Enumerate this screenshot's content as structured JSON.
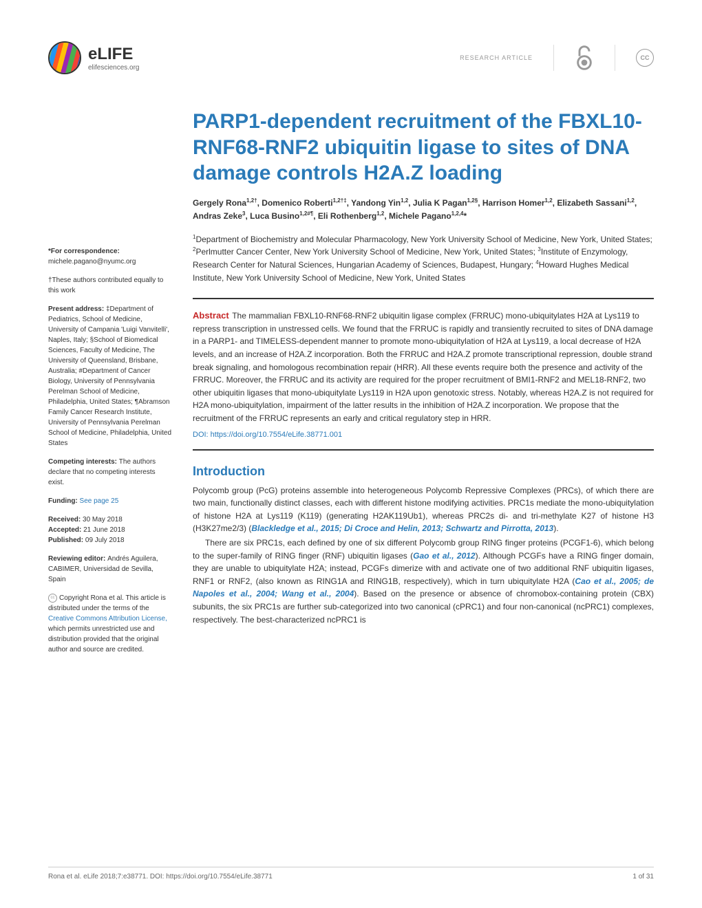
{
  "header": {
    "brand": "eLIFE",
    "url": "elifesciences.org",
    "research_label": "RESEARCH ARTICLE",
    "cc_label": "CC"
  },
  "title": "PARP1-dependent recruitment of the FBXL10-RNF68-RNF2 ubiquitin ligase to sites of DNA damage controls H2A.Z loading",
  "authors_html": "Gergely Rona<sup>1,2†</sup>, Domenico Roberti<sup>1,2†‡</sup>, Yandong Yin<sup>1,2</sup>, Julia K Pagan<sup>1,2§</sup>, Harrison Homer<sup>1,2</sup>, Elizabeth Sassani<sup>1,2</sup>, Andras Zeke<sup>3</sup>, Luca Busino<sup>1,2#¶</sup>, Eli Rothenberg<sup>1,2</sup>, Michele Pagano<sup>1,2,4</sup>*",
  "affiliations_html": "<sup>1</sup>Department of Biochemistry and Molecular Pharmacology, New York University School of Medicine, New York, United States; <sup>2</sup>Perlmutter Cancer Center, New York University School of Medicine, New York, United States; <sup>3</sup>Institute of Enzymology, Research Center for Natural Sciences, Hungarian Academy of Sciences, Budapest, Hungary; <sup>4</sup>Howard Hughes Medical Institute, New York University School of Medicine, New York, United States",
  "sidebar": {
    "correspondence_label": "*For correspondence:",
    "correspondence_email": "michele.pagano@nyumc.org",
    "equal_contrib": "†These authors contributed equally to this work",
    "present_addr_label": "Present address: ",
    "present_addr": "‡Department of Pediatrics, School of Medicine, University of Campania 'Luigi Vanvitelli', Naples, Italy; §School of Biomedical Sciences, Faculty of Medicine, The University of Queensland, Brisbane, Australia; #Department of Cancer Biology, University of Pennsylvania Perelman School of Medicine, Philadelphia, United States; ¶Abramson Family Cancer Research Institute, University of Pennsylvania Perelman School of Medicine, Philadelphia, United States",
    "competing_label": "Competing interests: ",
    "competing_text": "The authors declare that no competing interests exist.",
    "funding_label": "Funding: ",
    "funding_link": "See page 25",
    "received_label": "Received: ",
    "received_date": "30 May 2018",
    "accepted_label": "Accepted: ",
    "accepted_date": "21 June 2018",
    "published_label": "Published: ",
    "published_date": "09 July 2018",
    "reviewing_label": "Reviewing editor: ",
    "reviewing_text": "Andrés Aguilera, CABIMER, Universidad de Sevilla, Spain",
    "copyright_text": "Copyright Rona et al. This article is distributed under the terms of the ",
    "cc_link": "Creative Commons Attribution License,",
    "copyright_rest": " which permits unrestricted use and distribution provided that the original author and source are credited."
  },
  "abstract_label": "Abstract",
  "abstract": "The mammalian FBXL10-RNF68-RNF2 ubiquitin ligase complex (FRRUC) mono-ubiquitylates H2A at Lys119 to repress transcription in unstressed cells. We found that the FRRUC is rapidly and transiently recruited to sites of DNA damage in a PARP1- and TIMELESS-dependent manner to promote mono-ubiquitylation of H2A at Lys119, a local decrease of H2A levels, and an increase of H2A.Z incorporation. Both the FRRUC and H2A.Z promote transcriptional repression, double strand break signaling, and homologous recombination repair (HRR). All these events require both the presence and activity of the FRRUC. Moreover, the FRRUC and its activity are required for the proper recruitment of BMI1-RNF2 and MEL18-RNF2, two other ubiquitin ligases that mono-ubiquitylate Lys119 in H2A upon genotoxic stress. Notably, whereas H2A.Z is not required for H2A mono-ubiquitylation, impairment of the latter results in the inhibition of H2A.Z incorporation. We propose that the recruitment of the FRRUC represents an early and critical regulatory step in HRR.",
  "doi": "DOI: https://doi.org/10.7554/eLife.38771.001",
  "intro_heading": "Introduction",
  "intro_p1": "Polycomb group (PcG) proteins assemble into heterogeneous Polycomb Repressive Complexes (PRCs), of which there are two main, functionally distinct classes, each with different histone modifying activities. PRC1s mediate the mono-ubiquitylation of histone H2A at Lys119 (K119) (generating H2AK119Ub1), whereas PRC2s di- and tri-methylate K27 of histone H3 (H3K27me2/3) (",
  "intro_refs1": "Blackledge et al., 2015; Di Croce and Helin, 2013; Schwartz and Pirrotta, 2013",
  "intro_p1_end": ").",
  "intro_p2_start": "There are six PRC1s, each defined by one of six different Polycomb group RING finger proteins (PCGF1-6), which belong to the super-family of RING finger (RNF) ubiquitin ligases (",
  "intro_ref2": "Gao et al., 2012",
  "intro_p2_mid": "). Although PCGFs have a RING finger domain, they are unable to ubiquitylate H2A; instead, PCGFs dimerize with and activate one of two additional RNF ubiquitin ligases, RNF1 or RNF2, (also known as RING1A and RING1B, respectively), which in turn ubiquitylate H2A (",
  "intro_ref3": "Cao et al., 2005; de Napoles et al., 2004; Wang et al., 2004",
  "intro_p2_end": "). Based on the presence or absence of chromobox-containing protein (CBX) subunits, the six PRC1s are further sub-categorized into two canonical (cPRC1) and four non-canonical (ncPRC1) complexes, respectively. The best-characterized ncPRC1 is",
  "footer": {
    "citation": "Rona et al. eLife 2018;7:e38771. DOI: https://doi.org/10.7554/eLife.38771",
    "page": "1 of 31"
  },
  "colors": {
    "primary_blue": "#2a7ab8",
    "abstract_red": "#c62828",
    "text": "#333333",
    "muted": "#999999"
  }
}
